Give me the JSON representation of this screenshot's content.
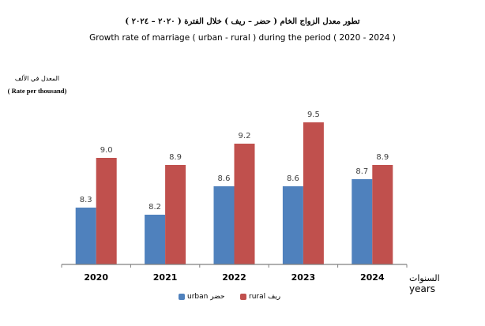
{
  "chart_data": {
    "type": "bar",
    "title_ar": "تطور معدل الزواج الخام ( حضر – ريف ) خلال الفترة ( ٢٠٢٠ – ٢٠٢٤ )",
    "title": "Growth rate of marriage ( urban - rural ) during the period ( 2020 - 2024 )",
    "ylabel_ar": "المعدل في الألف",
    "ylabel": "( Rate per thousand)",
    "xlabel_ar": "السنوات",
    "xlabel": "years",
    "categories": [
      "2020",
      "2021",
      "2022",
      "2023",
      "2024"
    ],
    "series": [
      {
        "name": "urban حضر",
        "color": "#4f81bd",
        "values": [
          8.3,
          8.2,
          8.6,
          8.6,
          8.7
        ]
      },
      {
        "name": "rural ريف",
        "color": "#c0504d",
        "values": [
          9.0,
          8.9,
          9.2,
          9.5,
          8.9
        ]
      }
    ],
    "ylim": [
      7.5,
      10
    ],
    "grid": false,
    "legend": "bottom",
    "data_labels": true
  }
}
